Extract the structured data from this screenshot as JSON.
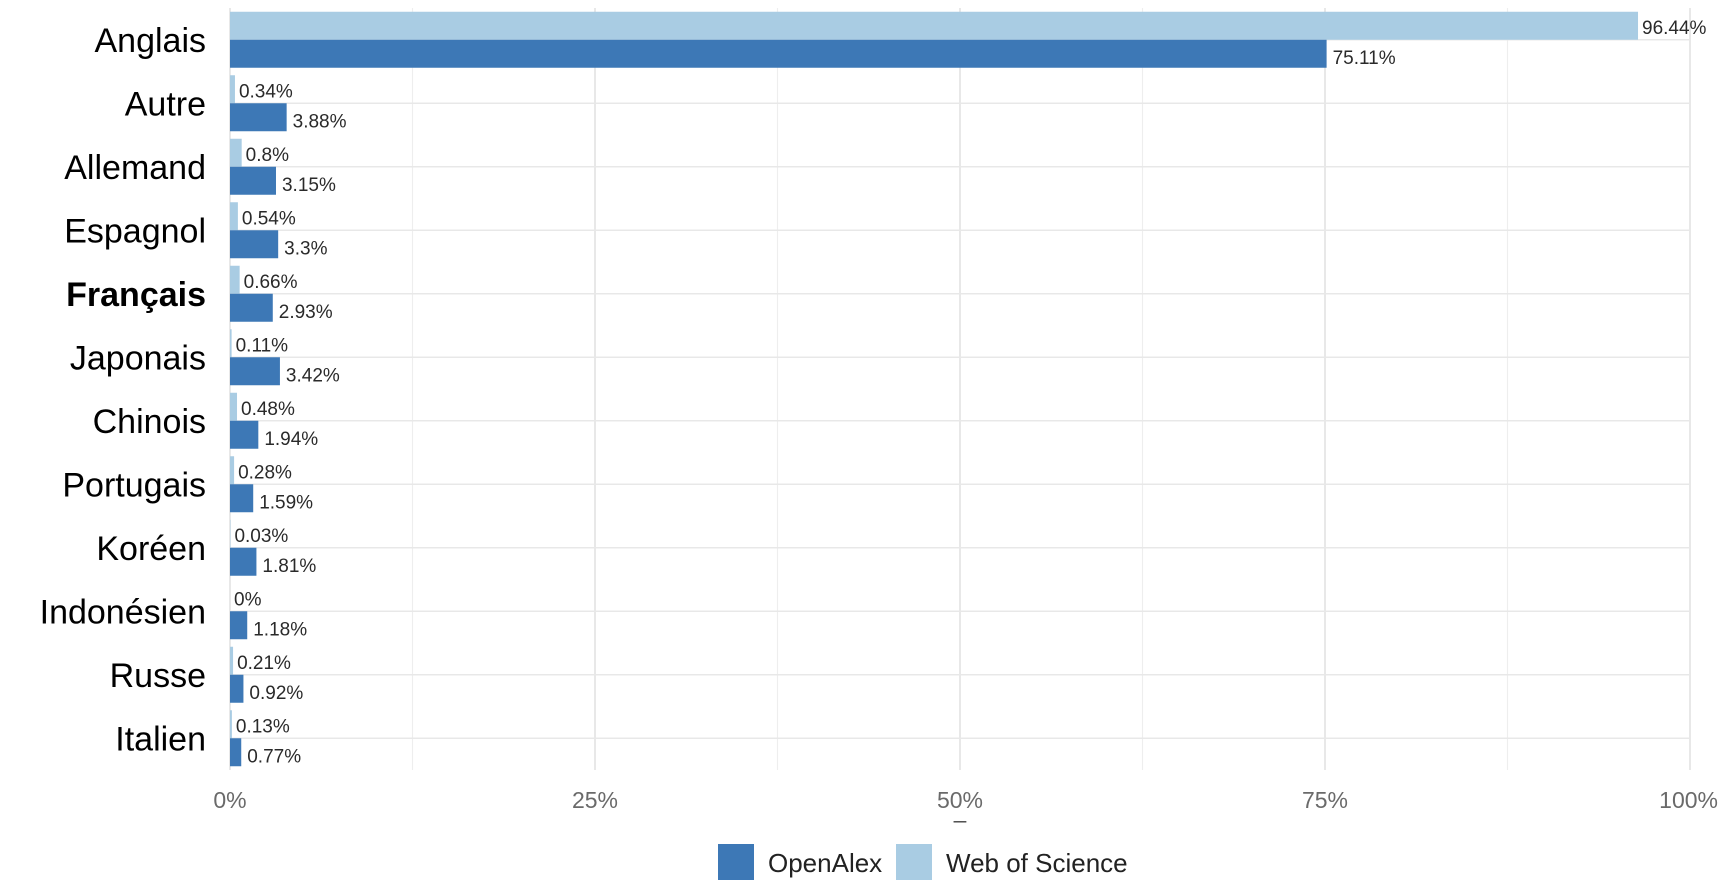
{
  "chart_data": {
    "type": "bar",
    "orientation": "horizontal",
    "categories": [
      "Anglais",
      "Autre",
      "Allemand",
      "Espagnol",
      "Français",
      "Japonais",
      "Chinois",
      "Portugais",
      "Koréen",
      "Indonésien",
      "Russe",
      "Italien"
    ],
    "highlighted_category": "Français",
    "series": [
      {
        "name": "Web of Science",
        "color": "#a9cce3",
        "values": [
          96.44,
          0.34,
          0.8,
          0.54,
          0.66,
          0.11,
          0.48,
          0.28,
          0.03,
          0,
          0.21,
          0.13
        ],
        "labels": [
          "96.44%",
          "0.34%",
          "0.8%",
          "0.54%",
          "0.66%",
          "0.11%",
          "0.48%",
          "0.28%",
          "0.03%",
          "0%",
          "0.21%",
          "0.13%"
        ]
      },
      {
        "name": "OpenAlex",
        "color": "#3d78b6",
        "values": [
          75.11,
          3.88,
          3.15,
          3.3,
          2.93,
          3.42,
          1.94,
          1.59,
          1.81,
          1.18,
          0.92,
          0.77
        ],
        "labels": [
          "75.11%",
          "3.88%",
          "3.15%",
          "3.3%",
          "2.93%",
          "3.42%",
          "1.94%",
          "1.59%",
          "1.81%",
          "1.18%",
          "0.92%",
          "0.77%"
        ]
      }
    ],
    "xlim": [
      0,
      100
    ],
    "xticks": [
      0,
      25,
      50,
      75,
      100
    ],
    "xtick_labels": [
      "0%",
      "25%",
      "50%",
      "75%",
      "100%"
    ],
    "xlabel": "_",
    "ylabel": "",
    "title": "",
    "grid": true,
    "legend": {
      "position": "bottom",
      "entries": [
        {
          "label": "OpenAlex",
          "color": "#3d78b6"
        },
        {
          "label": "Web of Science",
          "color": "#a9cce3"
        }
      ]
    }
  }
}
